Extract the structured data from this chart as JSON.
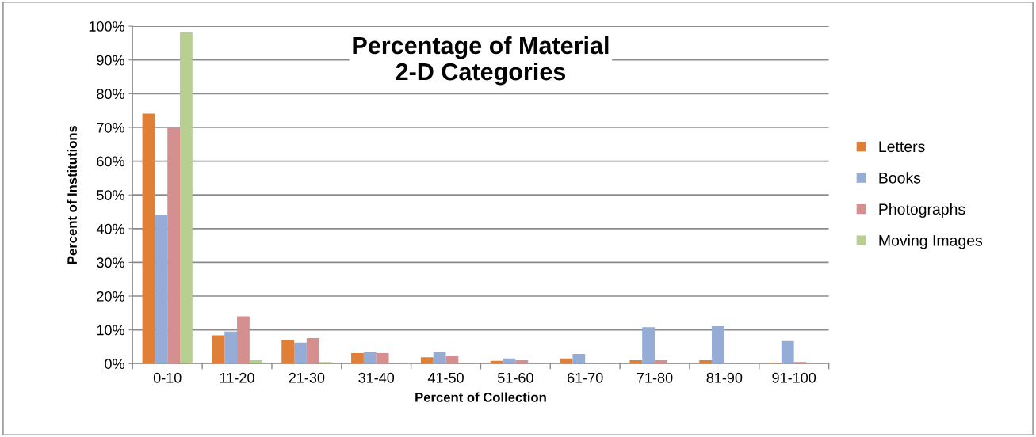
{
  "chart_data": {
    "type": "bar",
    "title": "Percentage of Material\n2-D Categories",
    "xlabel": "Percent of Collection",
    "ylabel": "Percent of Institutions",
    "categories": [
      "0-10",
      "11-20",
      "21-30",
      "31-40",
      "41-50",
      "51-60",
      "61-70",
      "71-80",
      "81-90",
      "91-100"
    ],
    "series": [
      {
        "name": "Letters",
        "color": "#e07f38",
        "values": [
          74.1,
          8.4,
          7.1,
          3.1,
          1.9,
          0.8,
          1.5,
          1.0,
          1.0,
          0.2
        ]
      },
      {
        "name": "Books",
        "color": "#94acd6",
        "values": [
          44,
          9.5,
          6.2,
          3.4,
          3.4,
          1.5,
          2.9,
          10.8,
          11.1,
          6.7
        ]
      },
      {
        "name": "Photographs",
        "color": "#d58f8f",
        "values": [
          70,
          14.0,
          7.6,
          3.1,
          2.2,
          1.0,
          0,
          1.0,
          0,
          0.5
        ]
      },
      {
        "name": "Moving Images",
        "color": "#b7cf90",
        "values": [
          98.2,
          1.0,
          0.5,
          0,
          0,
          0,
          0,
          0,
          0,
          0
        ]
      }
    ],
    "ylim": [
      0,
      100
    ],
    "yticks": [
      {
        "value": 0,
        "label": "0%"
      },
      {
        "value": 10,
        "label": "10%"
      },
      {
        "value": 20,
        "label": "20%"
      },
      {
        "value": 30,
        "label": "30%"
      },
      {
        "value": 40,
        "label": "40%"
      },
      {
        "value": 50,
        "label": "50%"
      },
      {
        "value": 60,
        "label": "60%"
      },
      {
        "value": 70,
        "label": "70%"
      },
      {
        "value": 80,
        "label": "80%"
      },
      {
        "value": 90,
        "label": "90%"
      },
      {
        "value": 100,
        "label": "100%"
      }
    ],
    "grid": "y",
    "legend": "right"
  }
}
